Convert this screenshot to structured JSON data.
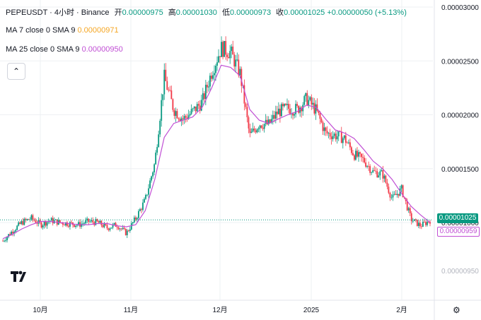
{
  "header": {
    "symbol": "PEPEUSDT · 4小时 · Binance",
    "open_label": "开",
    "open": "0.00000975",
    "high_label": "高",
    "high": "0.00001030",
    "low_label": "低",
    "low": "0.00000973",
    "close_label": "收",
    "close": "0.00001025",
    "change": "+0.00000050 (+5.13%)"
  },
  "indicators": {
    "ma7_label": "MA 7 close 0 SMA 9",
    "ma7_value": "0.00000971",
    "ma25_label": "MA 25 close 0 SMA 9",
    "ma25_value": "0.00000950"
  },
  "price_tags": {
    "last": "0.00001025",
    "ma": "0.00000959",
    "ghost": "0.00000950"
  },
  "colors": {
    "up": "#089981",
    "down": "#f23645",
    "ma_line": "#c04fd4",
    "grid": "#eef0f3",
    "price_line": "#089981"
  },
  "chart_data": {
    "type": "candlestick",
    "title": "",
    "y_ticks": [
      "0.00003000",
      "0.00002500",
      "0.00002000",
      "0.00001500",
      "0.00001000"
    ],
    "ylim": [
      5e-06,
      3e-05
    ],
    "x_ticks": [
      "10月",
      "11月",
      "12月",
      "2025",
      "2月"
    ],
    "grid": true,
    "series": [
      {
        "name": "MA 25",
        "kind": "line",
        "values": [
          8.5e-06,
          8.9e-06,
          9.4e-06,
          9.8e-06,
          1.01e-05,
          1.01e-05,
          1e-05,
          9.9e-06,
          9.8e-06,
          9.8e-06,
          9.9e-06,
          9.9e-06,
          9.7e-06,
          9.6e-06,
          9.8e-06,
          1.11e-05,
          1.4e-05,
          1.79e-05,
          1.92e-05,
          1.95e-05,
          1.98e-05,
          2.07e-05,
          2.25e-05,
          2.46e-05,
          2.44e-05,
          2.36e-05,
          2.05e-05,
          1.95e-05,
          1.92e-05,
          1.96e-05,
          2e-05,
          2.03e-05,
          2.09e-05,
          2.07e-05,
          1.96e-05,
          1.86e-05,
          1.83e-05,
          1.78e-05,
          1.68e-05,
          1.57e-05,
          1.5e-05,
          1.4e-05,
          1.27e-05,
          1.15e-05,
          1.07e-05,
          1e-05
        ]
      }
    ],
    "candles_close": [
      8.3e-06,
      9.2e-06,
      1e-05,
      1.04e-05,
      9.8e-06,
      1.02e-05,
      1e-05,
      9.9e-06,
      9.8e-06,
      1.01e-05,
      1e-05,
      9.5e-06,
      9.8e-06,
      9e-06,
      1.04e-05,
      1.21e-05,
      1.55e-05,
      2.35e-05,
      2.05e-05,
      1.96e-05,
      2.03e-05,
      2.12e-05,
      2.4e-05,
      2.62e-05,
      2.58e-05,
      2.38e-05,
      1.8e-05,
      1.92e-05,
      1.91e-05,
      2.03e-05,
      2.06e-05,
      2.05e-05,
      2.15e-05,
      2.04e-05,
      1.83e-05,
      1.81e-05,
      1.78e-05,
      1.63e-05,
      1.58e-05,
      1.47e-05,
      1.45e-05,
      1.22e-05,
      1.31e-05,
      1.03e-05,
      9.7e-06,
      1.02e-05
    ]
  }
}
